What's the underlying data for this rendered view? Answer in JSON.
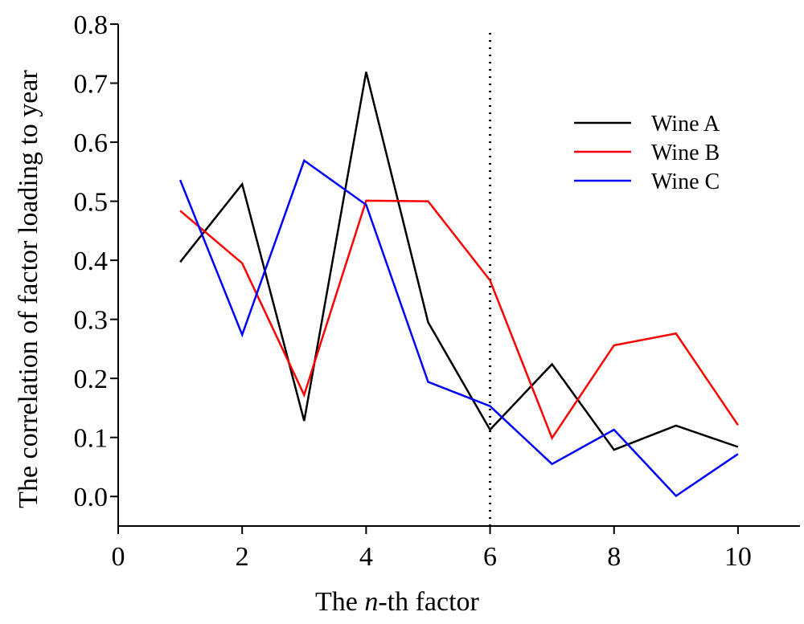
{
  "chart_data": {
    "type": "line",
    "xlabel_parts": [
      "The ",
      "n",
      "-th factor"
    ],
    "ylabel": "The correlation of factor loading to year",
    "xlim": [
      0,
      11
    ],
    "ylim": [
      -0.05,
      0.8
    ],
    "x_ticks": [
      0,
      2,
      4,
      6,
      8,
      10
    ],
    "x_tick_labels": [
      "0",
      "2",
      "4",
      "6",
      "8",
      "10"
    ],
    "y_ticks": [
      0.0,
      0.1,
      0.2,
      0.3,
      0.4,
      0.5,
      0.6,
      0.7,
      0.8
    ],
    "y_tick_labels": [
      "0.0",
      "0.1",
      "0.2",
      "0.3",
      "0.4",
      "0.5",
      "0.6",
      "0.7",
      "0.8"
    ],
    "grid": false,
    "legend_position": "top-right",
    "reference_line": {
      "orientation": "vertical",
      "x": 6,
      "style": "dotted",
      "color": "#000000"
    },
    "x": [
      1,
      2,
      3,
      4,
      5,
      6,
      7,
      8,
      9,
      10
    ],
    "series": [
      {
        "name": "Wine A",
        "color": "#000000",
        "values": [
          0.397,
          0.529,
          0.128,
          0.719,
          0.295,
          0.113,
          0.224,
          0.079,
          0.12,
          0.084
        ]
      },
      {
        "name": "Wine B",
        "color": "#ff0000",
        "values": [
          0.484,
          0.395,
          0.172,
          0.501,
          0.5,
          0.366,
          0.099,
          0.256,
          0.276,
          0.121
        ]
      },
      {
        "name": "Wine C",
        "color": "#0000ff",
        "values": [
          0.536,
          0.274,
          0.569,
          0.494,
          0.194,
          0.153,
          0.055,
          0.113,
          0.001,
          0.072
        ]
      }
    ]
  }
}
